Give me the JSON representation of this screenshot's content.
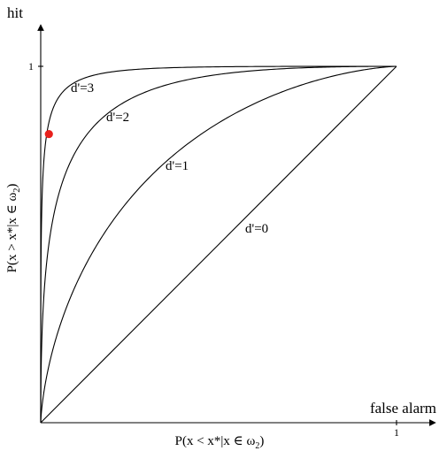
{
  "chart_data": {
    "type": "line",
    "title": "",
    "x_title": "false alarm",
    "y_title": "hit",
    "xlabel_parts": [
      "P(x < x*|x ∈ ω",
      "2",
      ")"
    ],
    "ylabel_parts": [
      "P(x > x*|x ∈ ω",
      "2",
      ")"
    ],
    "xlim": [
      0,
      1
    ],
    "ylim": [
      0,
      1
    ],
    "x_ticks": [
      {
        "value": 1,
        "label": "1"
      }
    ],
    "y_ticks": [
      {
        "value": 1,
        "label": "1"
      }
    ],
    "grid": false,
    "series": [
      {
        "name": "d'=0",
        "d_prime": 0,
        "x": [
          0,
          1
        ],
        "y": [
          0,
          1
        ]
      },
      {
        "name": "d'=1",
        "d_prime": 1,
        "x": [
          0,
          0.02,
          0.1,
          0.2,
          0.3,
          0.5,
          0.7,
          0.9,
          1
        ],
        "y": [
          0,
          0.11,
          0.39,
          0.56,
          0.69,
          0.84,
          0.94,
          0.99,
          1
        ]
      },
      {
        "name": "d'=2",
        "d_prime": 2,
        "x": [
          0,
          0.01,
          0.05,
          0.1,
          0.2,
          0.3,
          0.5,
          0.7,
          1
        ],
        "y": [
          0,
          0.25,
          0.62,
          0.77,
          0.89,
          0.94,
          0.98,
          0.995,
          1
        ]
      },
      {
        "name": "d'=3",
        "d_prime": 3,
        "x": [
          0,
          0.005,
          0.01,
          0.03,
          0.05,
          0.1,
          0.2,
          0.4,
          1
        ],
        "y": [
          0,
          0.6,
          0.74,
          0.88,
          0.93,
          0.97,
          0.99,
          0.998,
          1
        ]
      }
    ],
    "highlight_point": {
      "x": 0.023,
      "y": 0.81,
      "color": "#e8201c"
    },
    "colors": {
      "axes": "#000000",
      "curves": "#000000",
      "marker": "#e8201c"
    }
  }
}
